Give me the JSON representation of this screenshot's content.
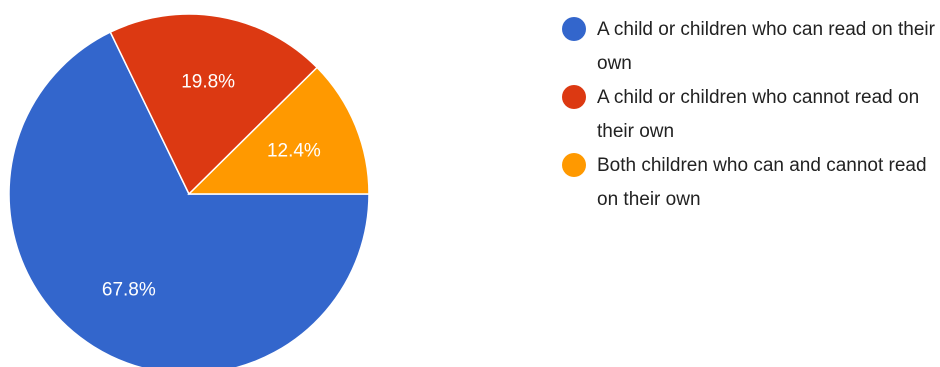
{
  "chart_data": {
    "type": "pie",
    "slices": [
      {
        "name": "A child or children who can read on their own",
        "value": 67.8,
        "label": "67.8%",
        "color": "#3366cc"
      },
      {
        "name": "A child or children who cannot read on their own",
        "value": 19.8,
        "label": "19.8%",
        "color": "#dc3912"
      },
      {
        "name": "Both children who can and cannot read on their own",
        "value": 12.4,
        "label": "12.4%",
        "color": "#ff9900"
      }
    ],
    "legend_position": "right"
  }
}
